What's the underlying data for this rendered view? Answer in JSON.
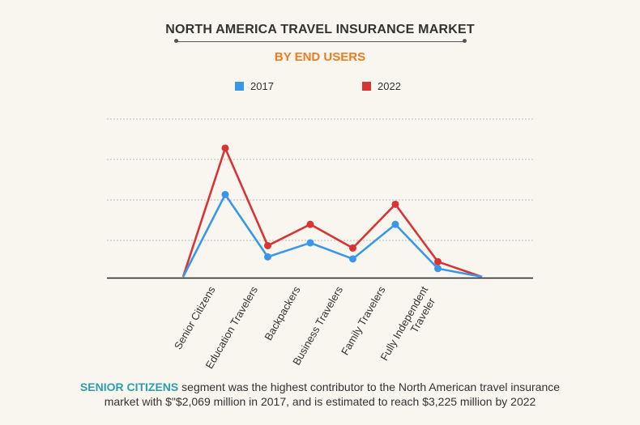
{
  "header": {
    "title": "NORTH AMERICA TRAVEL INSURANCE MARKET",
    "subtitle": "BY END USERS"
  },
  "colors": {
    "series_2017": "#3a97e8",
    "series_2022": "#d93434",
    "subtitle": "#f07a21",
    "highlight": "#2a9fb0"
  },
  "chart_data": {
    "type": "line",
    "categories": [
      "Senior Citizens",
      "Education Travelers",
      "Backpackers",
      "Business Travelers",
      "Family Travelers",
      "Fully Independent Traveler"
    ],
    "tick_labels": [
      [
        "Senior Citizens"
      ],
      [
        "Education Travelers"
      ],
      [
        "Backpackers"
      ],
      [
        "Business Travelers"
      ],
      [
        "Family Travelers"
      ],
      [
        "Fully Independent",
        "Traveler"
      ]
    ],
    "series": [
      {
        "name": "2017",
        "values": [
          2069,
          517,
          867,
          467,
          1327,
          227
        ]
      },
      {
        "name": "2022",
        "values": [
          3225,
          797,
          1327,
          737,
          1827,
          397
        ]
      }
    ],
    "ylim": [
      0,
      3950
    ],
    "grid": true,
    "legend": "top"
  },
  "footer": {
    "highlight": "SENIOR CITIZENS",
    "text_line1": " segment was the highest contributor to the North American travel insurance",
    "text_line2": "market with $\"$2,069 million in 2017, and is estimated to reach $3,225 million by 2022"
  }
}
